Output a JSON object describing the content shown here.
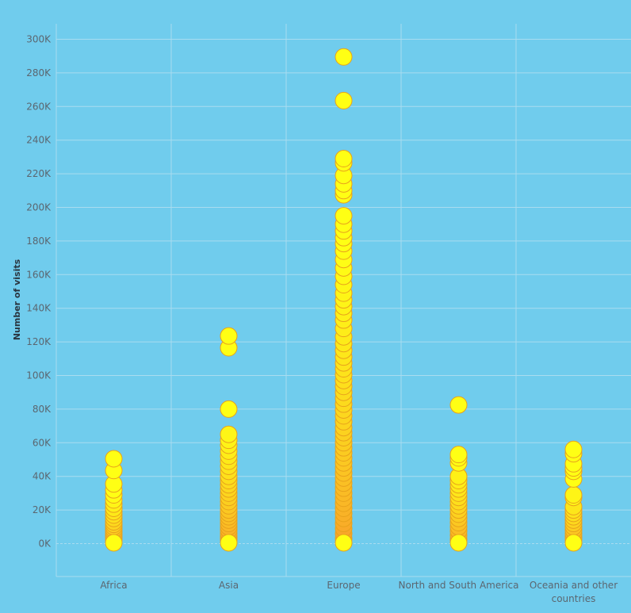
{
  "chart_data": {
    "type": "scatter",
    "ylabel": "Number of visits",
    "xlabel": "",
    "title": "",
    "ylim": [
      -20000,
      300000
    ],
    "y_ticks": [
      0,
      20000,
      40000,
      60000,
      80000,
      100000,
      120000,
      140000,
      160000,
      180000,
      200000,
      220000,
      240000,
      260000,
      280000,
      300000
    ],
    "y_tick_labels": [
      "0K",
      "20K",
      "40K",
      "60K",
      "80K",
      "100K",
      "120K",
      "140K",
      "160K",
      "180K",
      "200K",
      "220K",
      "240K",
      "260K",
      "280K",
      "300K"
    ],
    "categories": [
      {
        "label": "Africa",
        "label_lines": [
          "Africa"
        ]
      },
      {
        "label": "Asia",
        "label_lines": [
          "Asia"
        ]
      },
      {
        "label": "Europe",
        "label_lines": [
          "Europe"
        ]
      },
      {
        "label": "North and South America",
        "label_lines": [
          "North and South America"
        ]
      },
      {
        "label": "Oceania and other countries",
        "label_lines": [
          "Oceania and other",
          "countries"
        ]
      }
    ],
    "series": [
      {
        "category": "Africa",
        "values": [
          50500,
          43500,
          35500,
          32000,
          29000,
          26000,
          23500,
          21000,
          19000,
          17000,
          15000,
          13000,
          11500,
          10000,
          8500,
          7000,
          5500,
          4000,
          2500,
          500
        ]
      },
      {
        "category": "Asia",
        "values": [
          123500,
          116500,
          80000,
          65000,
          61500,
          58500,
          55000,
          52000,
          49000,
          46000,
          43000,
          40000,
          37500,
          35000,
          32500,
          30000,
          27500,
          25000,
          22500,
          20000,
          18000,
          16000,
          14000,
          12000,
          10000,
          8000,
          6000,
          4000,
          2500,
          500
        ]
      },
      {
        "category": "Europe",
        "values": [
          289500,
          263500,
          229000,
          226500,
          219000,
          214000,
          210000,
          207500,
          195000,
          190000,
          186000,
          182000,
          178500,
          174000,
          169000,
          164000,
          159000,
          154000,
          149000,
          145000,
          141000,
          137000,
          133000,
          128000,
          123000,
          119000,
          115000,
          111000,
          107500,
          104000,
          100500,
          97000,
          93500,
          90000,
          86500,
          83000,
          79500,
          76000,
          72500,
          69000,
          66000,
          63000,
          60000,
          57000,
          54000,
          51000,
          48000,
          45000,
          42000,
          39000,
          36000,
          33000,
          30000,
          27000,
          24000,
          21000,
          18000,
          15000,
          12000,
          9000,
          6000,
          3000,
          500
        ]
      },
      {
        "category": "North and South America",
        "values": [
          82500,
          53000,
          51000,
          48000,
          40000,
          37500,
          35000,
          32500,
          30000,
          27500,
          25000,
          22500,
          20000,
          17500,
          15000,
          12500,
          10000,
          7500,
          5000,
          2500,
          500
        ]
      },
      {
        "category": "Oceania and other countries",
        "values": [
          56000,
          53500,
          47500,
          45000,
          43000,
          38500,
          29000,
          27500,
          22000,
          20000,
          18000,
          16000,
          14000,
          12000,
          10000,
          8000,
          6000,
          4000,
          2500,
          500
        ]
      }
    ],
    "colors": {
      "background": "#70cced",
      "gridline": "#a9dcf0",
      "high_fill": "#ffff14",
      "low_fill": "#f7962e",
      "marker_stroke": "#e8a21c"
    },
    "grid": true
  }
}
